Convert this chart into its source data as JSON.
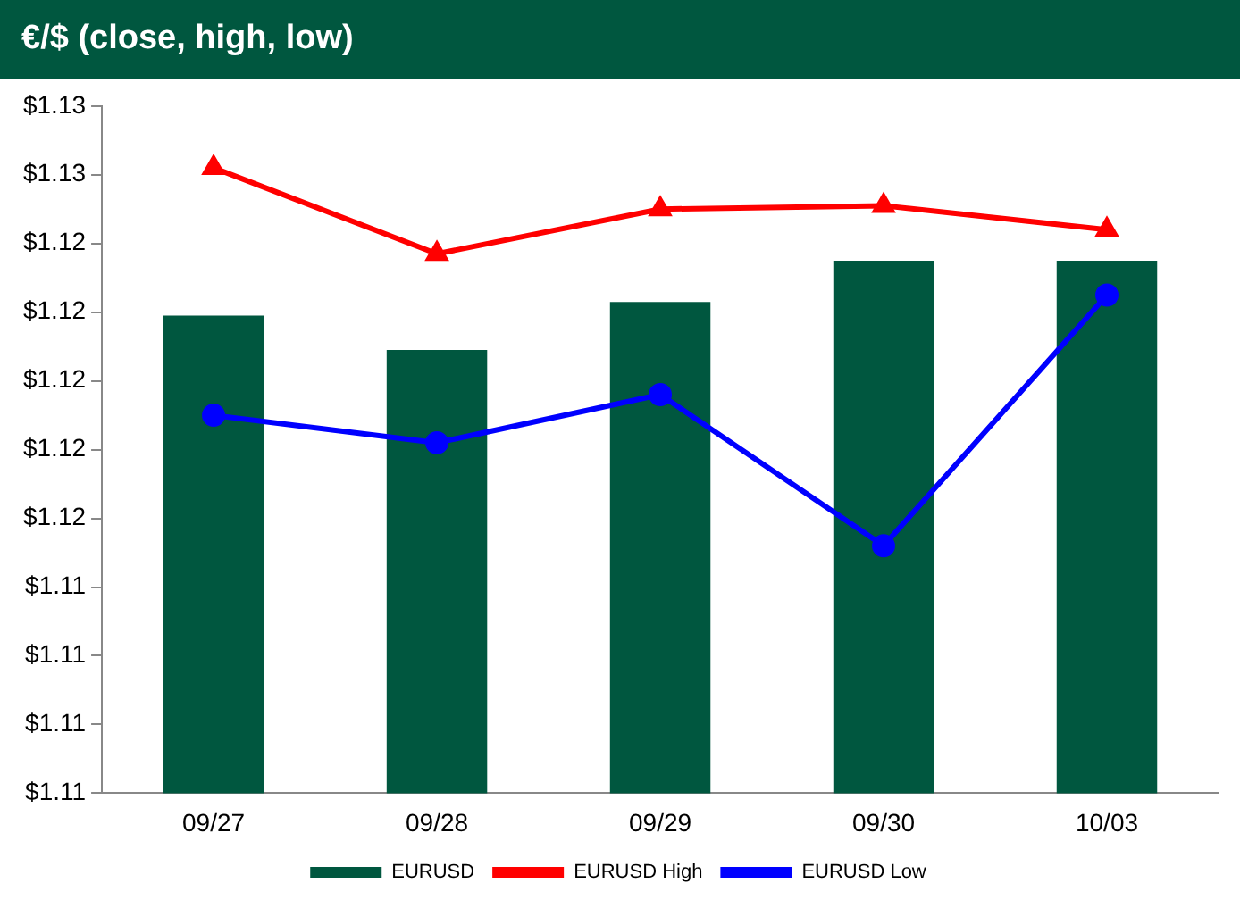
{
  "chart_data": {
    "type": "bar",
    "title": "€/$ (close, high, low)",
    "categories": [
      "09/27",
      "09/28",
      "09/29",
      "09/30",
      "10/03"
    ],
    "series": [
      {
        "name": "EURUSD",
        "color": "#00573f",
        "values": [
          1.1219,
          1.1209,
          1.1223,
          1.1235,
          1.1235
        ]
      },
      {
        "name": "EURUSD High",
        "type": "line",
        "color": "#ff0000",
        "marker": "triangle",
        "values": [
          1.1262,
          1.1237,
          1.125,
          1.1251,
          1.1244
        ]
      },
      {
        "name": "EURUSD Low",
        "type": "line",
        "color": "#0000ff",
        "marker": "circle",
        "values": [
          1.119,
          1.1182,
          1.1196,
          1.1152,
          1.1225
        ]
      }
    ],
    "ylim": [
      1.108,
      1.128
    ],
    "yticks": [
      {
        "value": 1.108,
        "label": "$1.11"
      },
      {
        "value": 1.11,
        "label": "$1.11"
      },
      {
        "value": 1.112,
        "label": "$1.11"
      },
      {
        "value": 1.114,
        "label": "$1.11"
      },
      {
        "value": 1.116,
        "label": "$1.12"
      },
      {
        "value": 1.118,
        "label": "$1.12"
      },
      {
        "value": 1.12,
        "label": "$1.12"
      },
      {
        "value": 1.122,
        "label": "$1.12"
      },
      {
        "value": 1.124,
        "label": "$1.12"
      },
      {
        "value": 1.126,
        "label": "$1.13"
      },
      {
        "value": 1.128,
        "label": "$1.13"
      }
    ],
    "grid": false,
    "legend": "bottom"
  }
}
